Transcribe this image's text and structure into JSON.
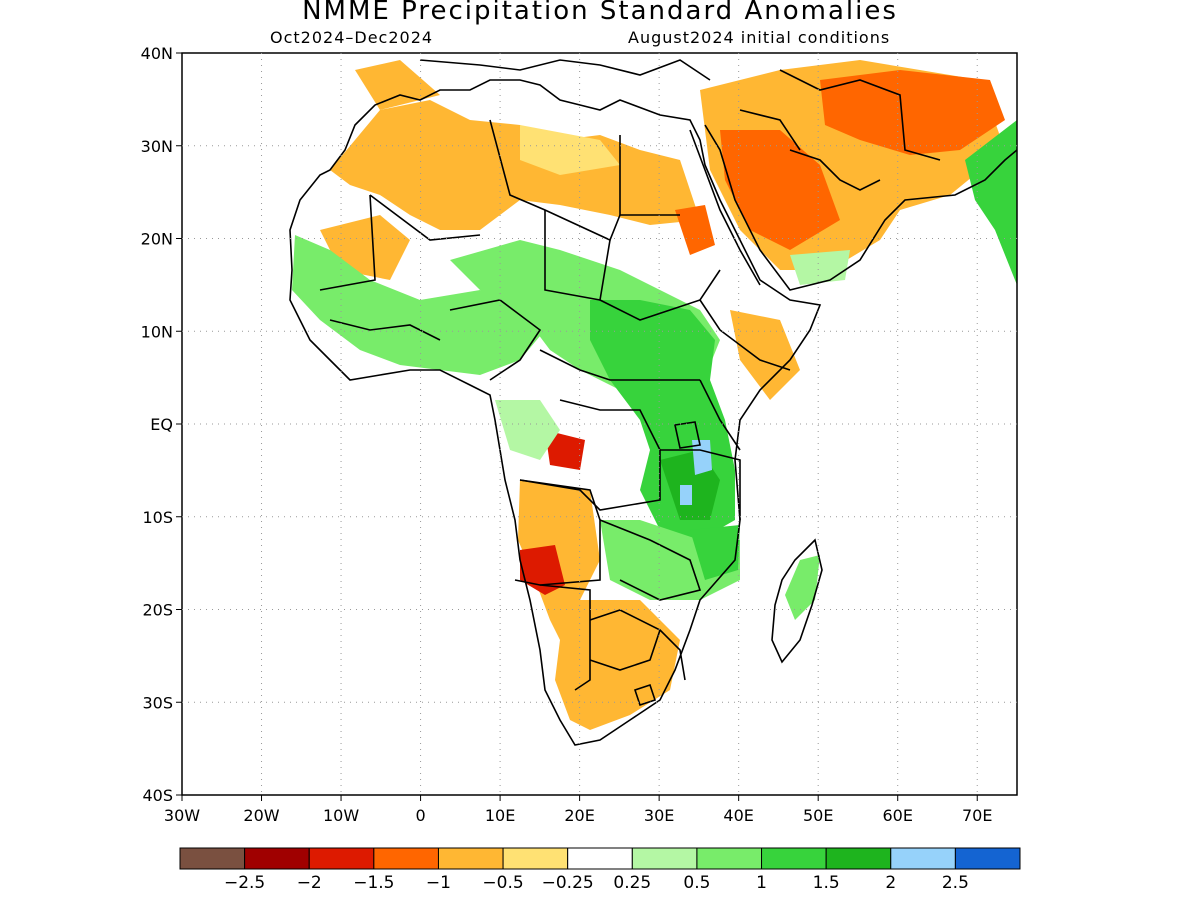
{
  "title": "NMME Precipitation Standard Anomalies",
  "subtitle_left": "Oct2024–Dec2024",
  "subtitle_right": "August2024 initial conditions",
  "map": {
    "lon_range": [
      -30,
      75
    ],
    "lat_range": [
      -40,
      40
    ],
    "lat_ticks": [
      {
        "value": 40,
        "label": "40N"
      },
      {
        "value": 30,
        "label": "30N"
      },
      {
        "value": 20,
        "label": "20N"
      },
      {
        "value": 10,
        "label": "10N"
      },
      {
        "value": 0,
        "label": "EQ"
      },
      {
        "value": -10,
        "label": "10S"
      },
      {
        "value": -20,
        "label": "20S"
      },
      {
        "value": -30,
        "label": "30S"
      },
      {
        "value": -40,
        "label": "40S"
      }
    ],
    "lon_ticks": [
      {
        "value": -30,
        "label": "30W"
      },
      {
        "value": -20,
        "label": "20W"
      },
      {
        "value": -10,
        "label": "10W"
      },
      {
        "value": 0,
        "label": "0"
      },
      {
        "value": 10,
        "label": "10E"
      },
      {
        "value": 20,
        "label": "20E"
      },
      {
        "value": 30,
        "label": "30E"
      },
      {
        "value": 40,
        "label": "40E"
      },
      {
        "value": 50,
        "label": "50E"
      },
      {
        "value": 60,
        "label": "60E"
      },
      {
        "value": 70,
        "label": "70E"
      }
    ],
    "grid": "dotted"
  },
  "colorbar": {
    "colors": [
      "#7a5040",
      "#a00000",
      "#dd1a00",
      "#ff6600",
      "#ffb733",
      "#ffe173",
      "#ffffff",
      "#b4f7a4",
      "#78ec6a",
      "#37d33c",
      "#1eb41e",
      "#96d2fa",
      "#1464d2"
    ],
    "labels": [
      "−2.5",
      "−2",
      "−1.5",
      "−1",
      "−0.5",
      "−0.25",
      "0.25",
      "0.5",
      "1",
      "1.5",
      "2",
      "2.5"
    ]
  },
  "palette": {
    "land": "#ffffff",
    "dry_light": "#ffe173",
    "dry": "#ffb733",
    "dry_strong": "#ff6600",
    "dry_severe": "#dd1a00",
    "wet_light": "#b4f7a4",
    "wet": "#78ec6a",
    "wet_strong": "#37d33c",
    "wet_severe": "#1eb41e",
    "wet_extreme": "#96d2fa"
  }
}
